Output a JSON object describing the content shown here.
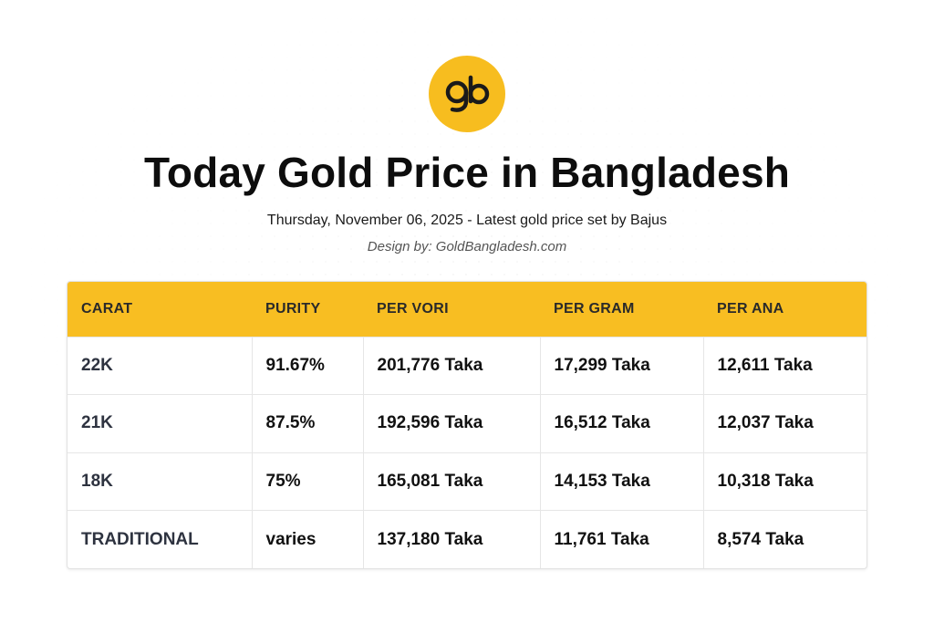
{
  "logo": {
    "icon": "gb-logo-icon",
    "color": "#f7bd1f"
  },
  "header": {
    "title": "Today Gold Price in Bangladesh",
    "subtitle": "Thursday, November 06, 2025 - Latest gold price set by Bajus",
    "credit": "Design by: GoldBangladesh.com"
  },
  "table": {
    "columns": [
      "CARAT",
      "PURITY",
      "PER VORI",
      "PER GRAM",
      "PER ANA"
    ],
    "rows": [
      [
        "22K",
        "91.67%",
        "201,776 Taka",
        "17,299 Taka",
        "12,611 Taka"
      ],
      [
        "21K",
        "87.5%",
        "192,596 Taka",
        "16,512 Taka",
        "12,037 Taka"
      ],
      [
        "18K",
        "75%",
        "165,081 Taka",
        "14,153 Taka",
        "10,318 Taka"
      ],
      [
        "TRADITIONAL",
        "varies",
        "137,180 Taka",
        "11,761 Taka",
        "8,574 Taka"
      ]
    ]
  },
  "colors": {
    "accent": "#f8be22",
    "text": "#111111"
  }
}
